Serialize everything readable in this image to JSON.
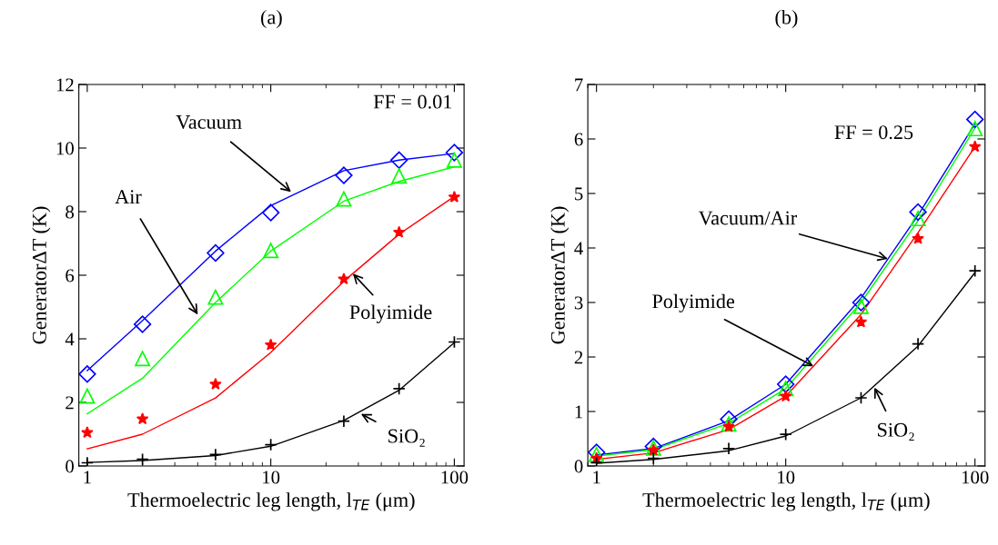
{
  "chart_data": [
    {
      "type": "line",
      "title": "(a)",
      "xlabel": "Thermoelectric leg length, l$_{TE}$ (μm)",
      "ylabel": "GeneratorΔT (K)",
      "log": "x",
      "grid": false,
      "legend": false,
      "xlim": [
        0.9,
        113
      ],
      "xticks": [
        1,
        10,
        100
      ],
      "ylim": [
        0,
        12
      ],
      "yticks": [
        0,
        2,
        4,
        6,
        8,
        10,
        12
      ],
      "series": [
        {
          "type": "line",
          "marker": "none",
          "color": "#0000ff",
          "x": [
            1,
            2,
            5,
            10,
            25,
            50,
            100
          ],
          "values": [
            3.0,
            4.57,
            6.76,
            8.19,
            9.29,
            9.62,
            9.83
          ]
        },
        {
          "type": "line",
          "marker": "none",
          "color": "#00ff00",
          "x": [
            1,
            2,
            5,
            10,
            25,
            50,
            100
          ],
          "values": [
            1.64,
            2.76,
            5.14,
            6.76,
            8.33,
            8.95,
            9.41
          ]
        },
        {
          "type": "line",
          "marker": "none",
          "color": "#ff0000",
          "x": [
            1,
            2,
            5,
            10,
            25,
            50,
            100
          ],
          "values": [
            0.54,
            1.0,
            2.14,
            3.57,
            5.81,
            7.29,
            8.48
          ]
        },
        {
          "type": "line",
          "marker": "none",
          "color": "#000000",
          "x": [
            1,
            2,
            5,
            10,
            25,
            50,
            100
          ],
          "values": [
            0.11,
            0.17,
            0.33,
            0.62,
            1.43,
            2.38,
            3.88
          ]
        },
        {
          "type": "scatter",
          "marker": "diamond",
          "color": "#0000ff",
          "x": [
            1,
            2,
            5,
            10,
            25,
            50,
            100
          ],
          "values": [
            2.89,
            4.46,
            6.7,
            7.97,
            9.14,
            9.62,
            9.86
          ]
        },
        {
          "type": "scatter",
          "marker": "triangle",
          "color": "#00ff00",
          "x": [
            1,
            2,
            5,
            10,
            25,
            50,
            100
          ],
          "values": [
            2.2,
            3.38,
            5.31,
            6.78,
            8.4,
            9.12,
            9.62
          ]
        },
        {
          "type": "scatter",
          "marker": "star",
          "color": "#ff0000",
          "x": [
            1,
            2,
            5,
            10,
            25,
            50,
            100
          ],
          "values": [
            1.05,
            1.48,
            2.57,
            3.81,
            5.88,
            7.35,
            8.46
          ]
        },
        {
          "type": "scatter",
          "marker": "cross",
          "color": "#000000",
          "x": [
            1,
            2,
            5,
            10,
            25,
            50,
            100
          ],
          "values": [
            0.1,
            0.21,
            0.36,
            0.67,
            1.41,
            2.43,
            3.9
          ]
        }
      ],
      "annotations": [
        "FF = 0.01",
        {
          "text": "Vacuum",
          "x": 12.9,
          "y": 8.62
        },
        {
          "text": "Air",
          "x": 4.0,
          "y": 4.76
        },
        {
          "text": "Polyimide",
          "x": 28,
          "y": 6.05
        },
        {
          "text": "SiO₂",
          "x": 31,
          "y": 1.64
        }
      ]
    },
    {
      "type": "line",
      "title": "(b)",
      "xlabel": "Thermoelectric leg length, l$_{TE}$ (μm)",
      "ylabel": "GeneratorΔT (K)",
      "log": "x",
      "grid": false,
      "legend": false,
      "xlim": [
        0.9,
        113
      ],
      "xticks": [
        1,
        10,
        100
      ],
      "ylim": [
        0,
        7
      ],
      "yticks": [
        0,
        1,
        2,
        3,
        4,
        5,
        6,
        7
      ],
      "series": [
        {
          "type": "line",
          "marker": "none",
          "color": "#0000ff",
          "x": [
            1,
            2,
            5,
            10,
            25,
            50,
            100
          ],
          "values": [
            0.2,
            0.32,
            0.83,
            1.5,
            3.08,
            4.6,
            6.28
          ]
        },
        {
          "type": "line",
          "marker": "none",
          "color": "#00ff00",
          "x": [
            1,
            2,
            5,
            10,
            25,
            50,
            100
          ],
          "values": [
            0.18,
            0.3,
            0.78,
            1.42,
            3.0,
            4.5,
            6.2
          ]
        },
        {
          "type": "line",
          "marker": "none",
          "color": "#ff0000",
          "x": [
            1,
            2,
            5,
            10,
            25,
            50,
            100
          ],
          "values": [
            0.12,
            0.24,
            0.67,
            1.28,
            2.78,
            4.28,
            5.86
          ]
        },
        {
          "type": "line",
          "marker": "none",
          "color": "#000000",
          "x": [
            1,
            2,
            5,
            10,
            25,
            50,
            100
          ],
          "values": [
            0.05,
            0.12,
            0.28,
            0.55,
            1.25,
            2.2,
            3.55
          ]
        },
        {
          "type": "scatter",
          "marker": "diamond",
          "color": "#0000ff",
          "x": [
            1,
            2,
            5,
            10,
            25,
            50,
            100
          ],
          "values": [
            0.25,
            0.36,
            0.86,
            1.5,
            3.0,
            4.66,
            6.36
          ]
        },
        {
          "type": "scatter",
          "marker": "triangle",
          "color": "#00ff00",
          "x": [
            1,
            2,
            5,
            10,
            25,
            50,
            100
          ],
          "values": [
            0.21,
            0.33,
            0.77,
            1.42,
            2.93,
            4.54,
            6.19
          ]
        },
        {
          "type": "scatter",
          "marker": "star",
          "color": "#ff0000",
          "x": [
            1,
            2,
            5,
            10,
            25,
            50,
            100
          ],
          "values": [
            0.14,
            0.29,
            0.72,
            1.28,
            2.64,
            4.17,
            5.86
          ]
        },
        {
          "type": "scatter",
          "marker": "cross",
          "color": "#000000",
          "x": [
            1,
            2,
            5,
            10,
            25,
            50,
            100
          ],
          "values": [
            0.06,
            0.14,
            0.32,
            0.58,
            1.25,
            2.24,
            3.58
          ]
        }
      ],
      "annotations": [
        "FF = 0.25",
        {
          "text": "Vacuum/Air",
          "x": 34.7,
          "y": 3.8
        },
        {
          "text": "Polyimide",
          "x": 14,
          "y": 1.83
        },
        {
          "text": "SiO₂",
          "x": 29.4,
          "y": 1.44
        }
      ]
    }
  ]
}
